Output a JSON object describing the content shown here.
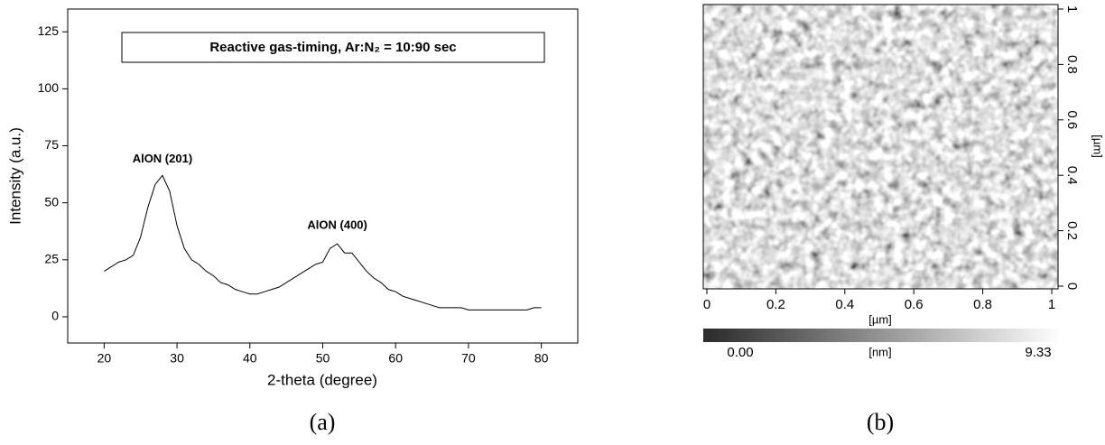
{
  "chart_data": [
    {
      "type": "line",
      "title": "Reactive gas-timing, Ar:N₂ = 10:90 sec",
      "x_label": "2-theta (degree)",
      "y_label": "Intensity (a.u.)",
      "caption": "(a)",
      "annotations": [
        {
          "text": "AlON (201)",
          "x": 28,
          "y": 69
        },
        {
          "text": "AlON (400)",
          "x": 52,
          "y": 40
        }
      ],
      "x": [
        20,
        21,
        22,
        23,
        24,
        25,
        26,
        27,
        28,
        29,
        30,
        31,
        32,
        33,
        34,
        35,
        36,
        37,
        38,
        39,
        40,
        41,
        42,
        43,
        44,
        45,
        46,
        47,
        48,
        49,
        50,
        51,
        52,
        53,
        54,
        55,
        56,
        57,
        58,
        59,
        60,
        61,
        62,
        63,
        64,
        65,
        66,
        67,
        68,
        69,
        70,
        71,
        72,
        73,
        74,
        75,
        76,
        77,
        78,
        79,
        80
      ],
      "values": [
        20,
        22,
        24,
        25,
        27,
        35,
        48,
        58,
        62,
        55,
        40,
        30,
        25,
        23,
        20,
        18,
        15,
        14,
        12,
        11,
        10,
        10,
        11,
        12,
        13,
        15,
        17,
        19,
        21,
        23,
        24,
        30,
        32,
        28,
        28,
        24,
        20,
        17,
        15,
        12,
        11,
        9,
        8,
        7,
        6,
        5,
        4,
        4,
        4,
        4,
        3,
        3,
        3,
        3,
        3,
        3,
        3,
        3,
        3,
        4,
        4
      ],
      "color": "#000000",
      "xlim": [
        15,
        85
      ],
      "xticks": [
        20,
        30,
        40,
        50,
        60,
        70,
        80
      ],
      "ylim": [
        -11.5,
        135
      ],
      "yticks": [
        0,
        25,
        50,
        75,
        100,
        125
      ]
    },
    {
      "type": "image",
      "caption": "(b)",
      "x_label": "[µm]",
      "y_label": "[µm]",
      "xlim": [
        0,
        1
      ],
      "xticks": [
        0,
        0.2,
        0.4,
        0.6,
        0.8,
        1
      ],
      "ylim": [
        0,
        1
      ],
      "yticks": [
        0,
        0.2,
        0.4,
        0.6,
        0.8,
        1
      ],
      "colorbar": {
        "label": "[nm]",
        "range": [
          0,
          9.33
        ],
        "ticks": [
          {
            "value": 0,
            "label": "0.00"
          },
          9.33
        ]
      }
    }
  ]
}
